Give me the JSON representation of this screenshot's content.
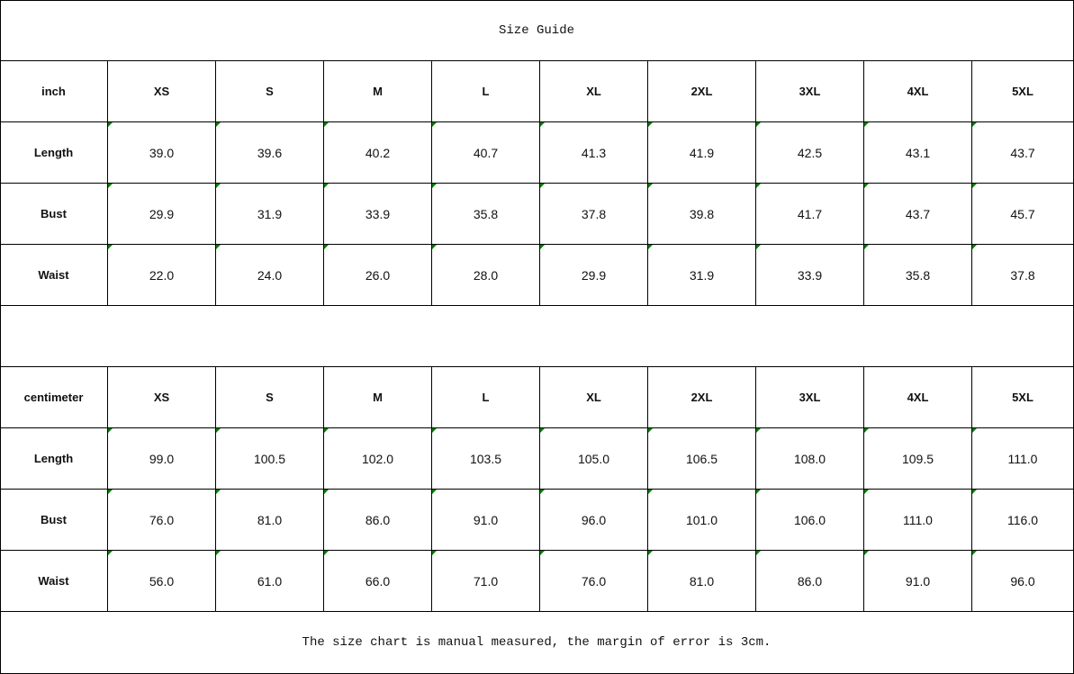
{
  "title": "Size Guide",
  "sizes": [
    "XS",
    "S",
    "M",
    "L",
    "XL",
    "2XL",
    "3XL",
    "4XL",
    "5XL"
  ],
  "tables": [
    {
      "unit": "inch",
      "rows": [
        {
          "label": "Length",
          "values": [
            "39.0",
            "39.6",
            "40.2",
            "40.7",
            "41.3",
            "41.9",
            "42.5",
            "43.1",
            "43.7"
          ]
        },
        {
          "label": "Bust",
          "values": [
            "29.9",
            "31.9",
            "33.9",
            "35.8",
            "37.8",
            "39.8",
            "41.7",
            "43.7",
            "45.7"
          ]
        },
        {
          "label": "Waist",
          "values": [
            "22.0",
            "24.0",
            "26.0",
            "28.0",
            "29.9",
            "31.9",
            "33.9",
            "35.8",
            "37.8"
          ]
        }
      ]
    },
    {
      "unit": "centimeter",
      "rows": [
        {
          "label": "Length",
          "values": [
            "99.0",
            "100.5",
            "102.0",
            "103.5",
            "105.0",
            "106.5",
            "108.0",
            "109.5",
            "111.0"
          ]
        },
        {
          "label": "Bust",
          "values": [
            "76.0",
            "81.0",
            "86.0",
            "91.0",
            "96.0",
            "101.0",
            "106.0",
            "111.0",
            "116.0"
          ]
        },
        {
          "label": "Waist",
          "values": [
            "56.0",
            "61.0",
            "66.0",
            "71.0",
            "76.0",
            "81.0",
            "86.0",
            "91.0",
            "96.0"
          ]
        }
      ]
    }
  ],
  "note": "The size chart is manual measured, the margin of error is 3cm.",
  "colors": {
    "cell_marker": "#008000",
    "border": "#000000"
  }
}
